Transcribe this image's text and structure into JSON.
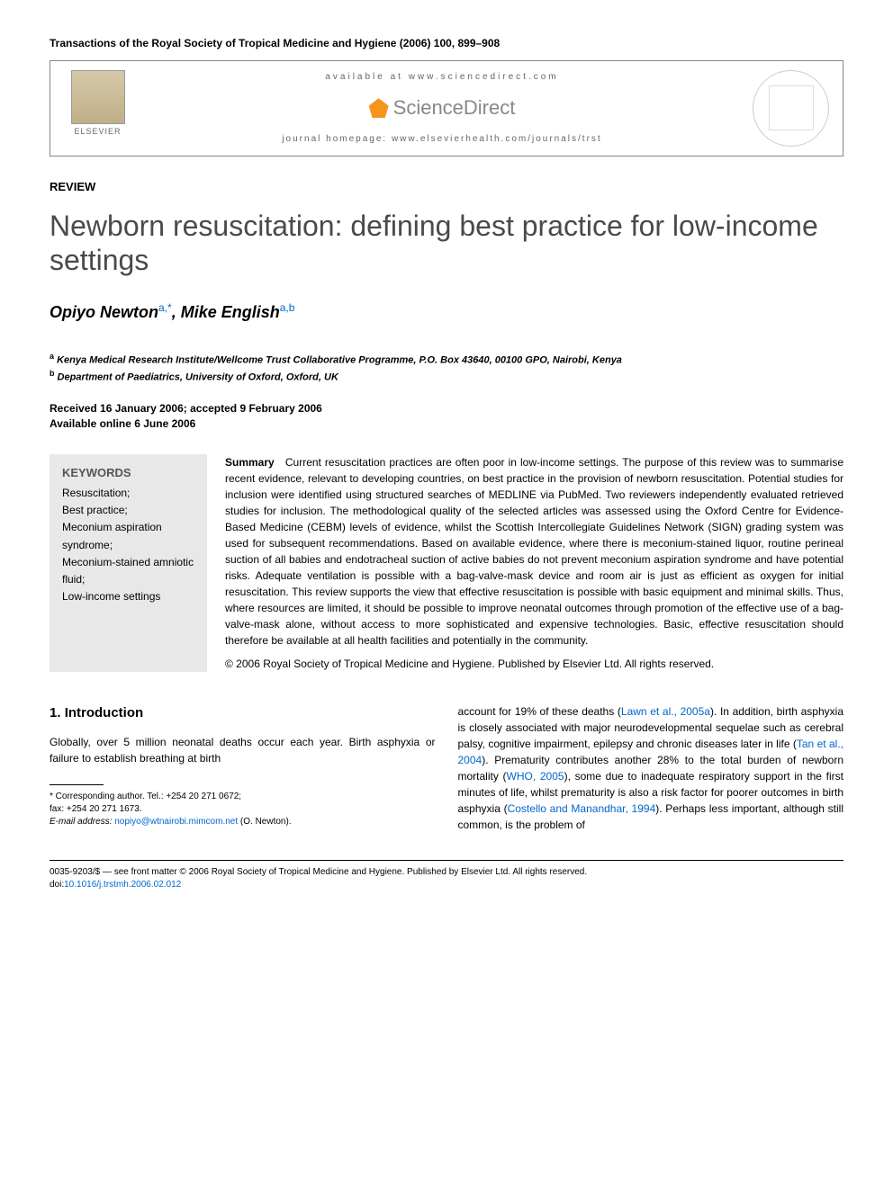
{
  "journal_header": "Transactions of the Royal Society of Tropical Medicine and Hygiene (2006) 100, 899–908",
  "banner": {
    "elsevier_label": "ELSEVIER",
    "available_at": "available at www.sciencedirect.com",
    "sciencedirect": "ScienceDirect",
    "homepage": "journal homepage: www.elsevierhealth.com/journals/trst"
  },
  "article": {
    "type": "REVIEW",
    "title": "Newborn resuscitation: defining best practice for low-income settings",
    "authors_html": "Opiyo Newton",
    "author1_sup": "a,*",
    "authors_sep": ", ",
    "author2": "Mike English",
    "author2_sup": "a,b",
    "affil_a_sup": "a",
    "affil_a": " Kenya Medical Research Institute/Wellcome Trust Collaborative Programme, P.O. Box 43640, 00100 GPO, Nairobi, Kenya",
    "affil_b_sup": "b",
    "affil_b": " Department of Paediatrics, University of Oxford, Oxford, UK",
    "dates": "Received 16 January 2006; accepted 9 February 2006\nAvailable online 6 June 2006"
  },
  "keywords": {
    "title": "KEYWORDS",
    "list": "Resuscitation;\nBest practice;\nMeconium aspiration syndrome;\nMeconium-stained amniotic fluid;\nLow-income settings"
  },
  "summary": {
    "label": "Summary",
    "text": "Current resuscitation practices are often poor in low-income settings. The purpose of this review was to summarise recent evidence, relevant to developing countries, on best practice in the provision of newborn resuscitation. Potential studies for inclusion were identified using structured searches of MEDLINE via PubMed. Two reviewers independently evaluated retrieved studies for inclusion. The methodological quality of the selected articles was assessed using the Oxford Centre for Evidence-Based Medicine (CEBM) levels of evidence, whilst the Scottish Intercollegiate Guidelines Network (SIGN) grading system was used for subsequent recommendations. Based on available evidence, where there is meconium-stained liquor, routine perineal suction of all babies and endotracheal suction of active babies do not prevent meconium aspiration syndrome and have potential risks. Adequate ventilation is possible with a bag-valve-mask device and room air is just as efficient as oxygen for initial resuscitation. This review supports the view that effective resuscitation is possible with basic equipment and minimal skills. Thus, where resources are limited, it should be possible to improve neonatal outcomes through promotion of the effective use of a bag-valve-mask alone, without access to more sophisticated and expensive technologies. Basic, effective resuscitation should therefore be available at all health facilities and potentially in the community.",
    "copyright": "© 2006 Royal Society of Tropical Medicine and Hygiene. Published by Elsevier Ltd. All rights reserved."
  },
  "body": {
    "section_number": "1.",
    "section_title": "Introduction",
    "col1_p1": "Globally, over 5 million neonatal deaths occur each year. Birth asphyxia or failure to establish breathing at birth",
    "col2_p1a": "account for 19% of these deaths (",
    "col2_ref1": "Lawn et al., 2005a",
    "col2_p1b": "). In addition, birth asphyxia is closely associated with major neurodevelopmental sequelae such as cerebral palsy, cognitive impairment, epilepsy and chronic diseases later in life (",
    "col2_ref2": "Tan et al., 2004",
    "col2_p1c": "). Prematurity contributes another 28% to the total burden of newborn mortality (",
    "col2_ref3": "WHO, 2005",
    "col2_p1d": "), some due to inadequate respiratory support in the first minutes of life, whilst prematurity is also a risk factor for poorer outcomes in birth asphyxia (",
    "col2_ref4": "Costello and Manandhar, 1994",
    "col2_p1e": "). Perhaps less important, although still common, is the problem of"
  },
  "footnote": {
    "corresponding": "* Corresponding author. Tel.: +254 20 271 0672;",
    "fax": "fax: +254 20 271 1673.",
    "email_label": "E-mail address:",
    "email": "nopiyo@wtnairobi.mimcom.net",
    "email_suffix": " (O. Newton)."
  },
  "bottom": {
    "issn_line": "0035-9203/$ — see front matter © 2006 Royal Society of Tropical Medicine and Hygiene. Published by Elsevier Ltd. All rights reserved.",
    "doi_prefix": "doi:",
    "doi": "10.1016/j.trstmh.2006.02.012"
  },
  "colors": {
    "link_blue": "#0066cc",
    "title_grey": "#4a4a4a",
    "keywords_bg": "#e8e8e8",
    "sd_orange": "#f7941e"
  }
}
